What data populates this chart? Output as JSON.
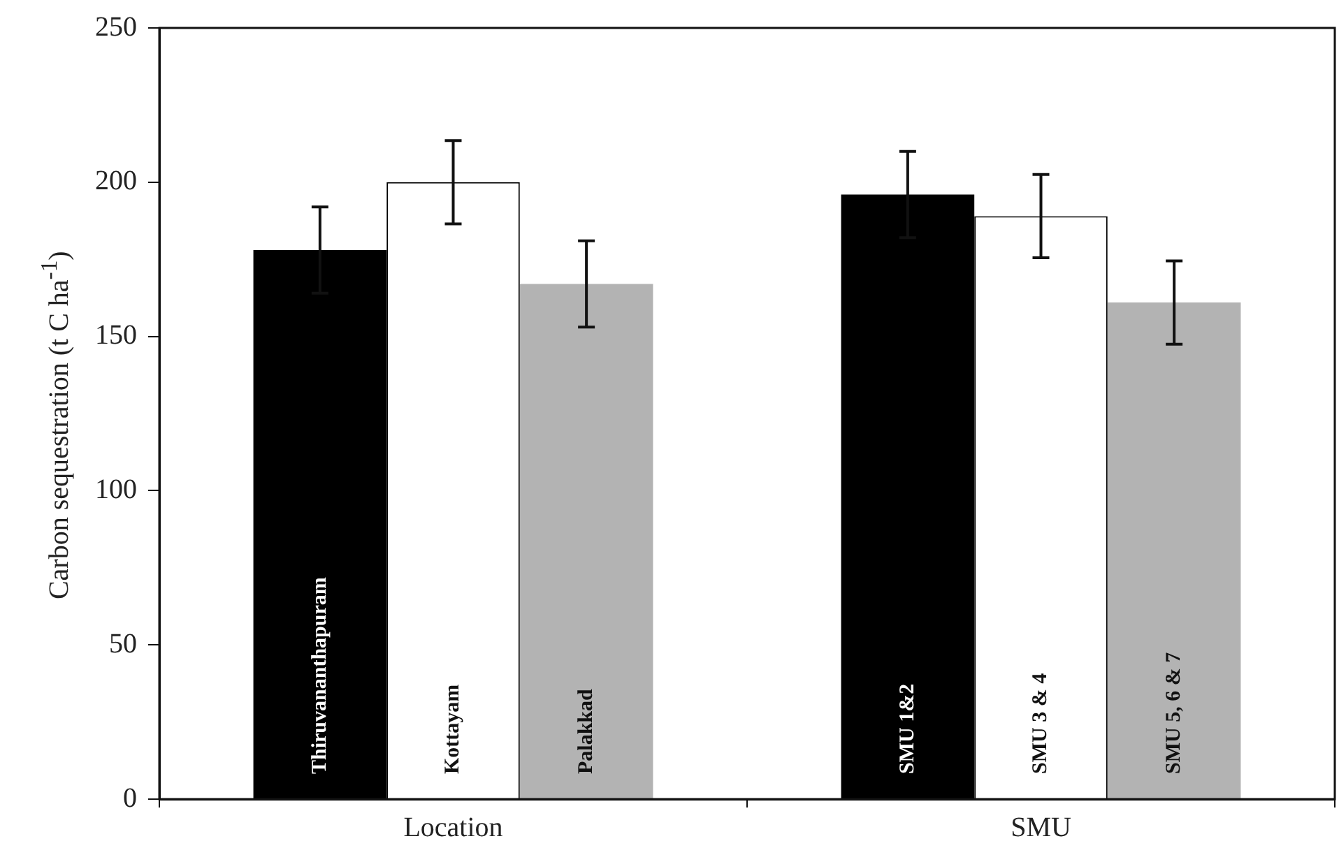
{
  "chart_data": {
    "type": "bar",
    "ylabel": "Carbon sequestration (t C ha$^{-1}$)",
    "categories": [
      "Location",
      "SMU"
    ],
    "series": [
      {
        "color": "#000000",
        "values": [
          178,
          196
        ],
        "errors": [
          14,
          14
        ]
      },
      {
        "color": "#ffffff",
        "values": [
          200,
          189
        ],
        "errors": [
          13.5,
          13.5
        ]
      },
      {
        "color": "#b3b3b3",
        "values": [
          167,
          161
        ],
        "errors": [
          14,
          13.5
        ]
      }
    ],
    "annotations": [
      "Thiruvananthapuram",
      "Kottayam",
      "Palakkad",
      "SMU 1&2",
      "SMU 3 & 4",
      "SMU 5, 6 & 7"
    ],
    "ylim": [
      0,
      250
    ],
    "yticks": [
      0,
      50,
      100,
      150,
      200,
      250
    ],
    "grid": false,
    "legend": false
  }
}
